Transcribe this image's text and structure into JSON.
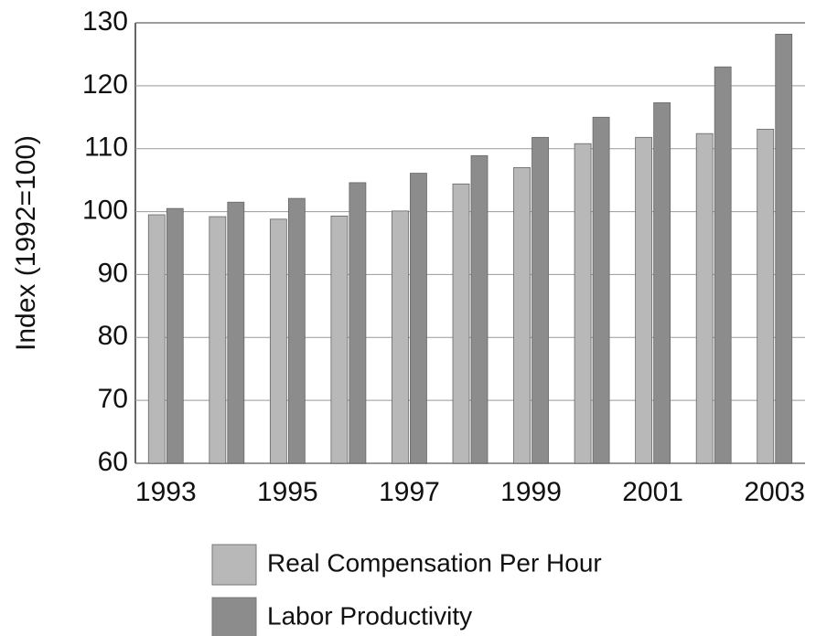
{
  "chart_data": {
    "type": "bar",
    "y_label": "Index (1992=100)",
    "categories": [
      "1993",
      null,
      "1995",
      null,
      "1997",
      null,
      "1999",
      null,
      "2001",
      null,
      "2003"
    ],
    "series": [
      {
        "name": "Real Compensation Per Hour",
        "color": "#b8b8b8",
        "values": [
          99.5,
          99.2,
          98.8,
          99.3,
          100.1,
          104.4,
          107.0,
          110.8,
          111.8,
          112.4,
          113.1
        ]
      },
      {
        "name": "Labor Productivity",
        "color": "#8c8c8c",
        "values": [
          100.5,
          101.5,
          102.1,
          104.6,
          106.1,
          108.9,
          111.8,
          115.0,
          117.3,
          123.0,
          128.2
        ]
      }
    ],
    "ylim": [
      60,
      130
    ],
    "yticks": [
      60,
      70,
      80,
      90,
      100,
      110,
      120,
      130
    ],
    "grid": true
  }
}
